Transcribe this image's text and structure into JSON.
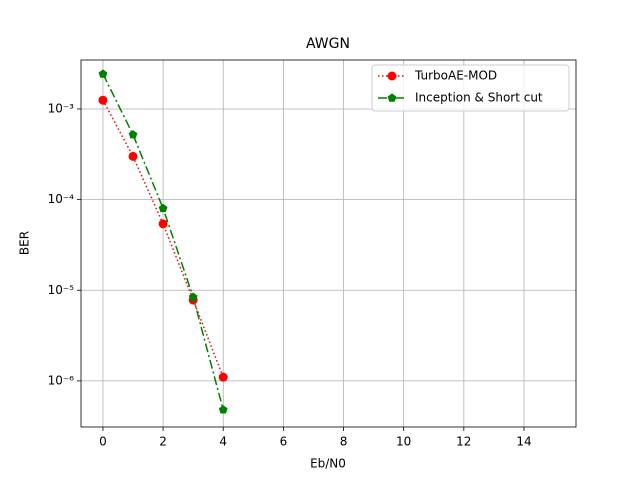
{
  "chart_data": {
    "type": "line",
    "title": "AWGN",
    "x_label": "Eb/N0",
    "y_label": "BER",
    "x": [
      0,
      1,
      2,
      3,
      4
    ],
    "series": [
      {
        "name": "TurboAE-MOD",
        "color": "#ff0000",
        "line_style": "dotted",
        "marker": "circle",
        "values": [
          0.00125,
          0.0003,
          5.4e-05,
          7.8e-06,
          1.1e-06
        ]
      },
      {
        "name": "Inception & Short cut",
        "color": "#008000",
        "line_style": "dashdot",
        "marker": "pentagon",
        "values": [
          0.00243,
          0.00052,
          8e-05,
          8.4e-06,
          4.8e-07
        ]
      }
    ],
    "xlim": [
      -0.73,
      15.73
    ],
    "xticks": [
      0,
      2,
      4,
      6,
      8,
      10,
      12,
      14
    ],
    "ylim": [
      3.1e-07,
      0.00347
    ],
    "y_scale": "log",
    "yticks": [
      {
        "value": 1e-06,
        "label": "10⁻⁶"
      },
      {
        "value": 1e-05,
        "label": "10⁻⁵"
      },
      {
        "value": 0.0001,
        "label": "10⁻⁴"
      },
      {
        "value": 0.001,
        "label": "10⁻³"
      }
    ],
    "grid": true,
    "legend": "upper right"
  }
}
